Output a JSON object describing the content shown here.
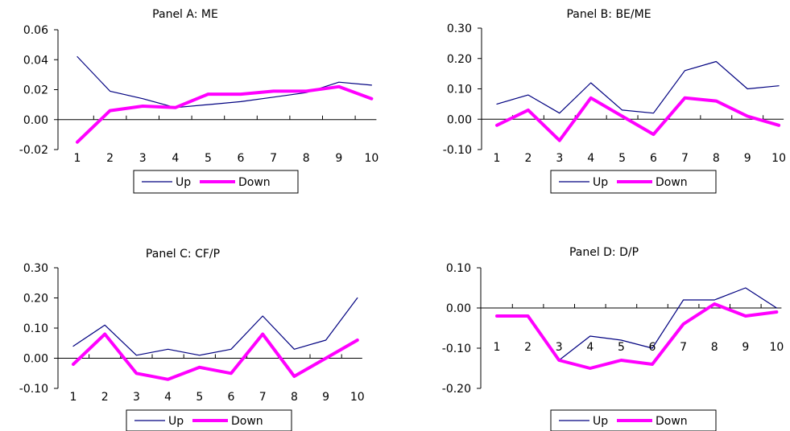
{
  "chart_data": [
    {
      "type": "line",
      "title": "Panel A: ME",
      "x": [
        "1",
        "2",
        "3",
        "4",
        "5",
        "6",
        "7",
        "8",
        "9",
        "10"
      ],
      "ylim": [
        -0.02,
        0.06
      ],
      "yticks": [
        "0.06",
        "0.04",
        "0.02",
        "0.00",
        "-0.02"
      ],
      "ytick_values": [
        0.06,
        0.04,
        0.02,
        0.0,
        -0.02
      ],
      "series": [
        {
          "name": "Up",
          "color": "#000080",
          "values": [
            0.042,
            0.019,
            0.014,
            0.008,
            0.01,
            0.012,
            0.015,
            0.018,
            0.025,
            0.023
          ]
        },
        {
          "name": "Down",
          "color": "#ff00ff",
          "values": [
            -0.015,
            0.006,
            0.009,
            0.008,
            0.017,
            0.017,
            0.019,
            0.019,
            0.022,
            0.014
          ]
        }
      ],
      "legend": "bottom"
    },
    {
      "type": "line",
      "title": "Panel B: BE/ME",
      "x": [
        "1",
        "2",
        "3",
        "4",
        "5",
        "6",
        "7",
        "8",
        "9",
        "10"
      ],
      "ylim": [
        -0.1,
        0.3
      ],
      "yticks": [
        "0.30",
        "0.20",
        "0.10",
        "0.00",
        "-0.10"
      ],
      "ytick_values": [
        0.3,
        0.2,
        0.1,
        0.0,
        -0.1
      ],
      "series": [
        {
          "name": "Up",
          "color": "#000080",
          "values": [
            0.05,
            0.08,
            0.02,
            0.12,
            0.03,
            0.02,
            0.16,
            0.19,
            0.1,
            0.11
          ]
        },
        {
          "name": "Down",
          "color": "#ff00ff",
          "values": [
            -0.02,
            0.03,
            -0.07,
            0.07,
            0.01,
            -0.05,
            0.07,
            0.06,
            0.01,
            -0.02
          ]
        }
      ],
      "legend": "bottom"
    },
    {
      "type": "line",
      "title": "Panel C: CF/P",
      "x": [
        "1",
        "2",
        "3",
        "4",
        "5",
        "6",
        "7",
        "8",
        "9",
        "10"
      ],
      "ylim": [
        -0.1,
        0.3
      ],
      "yticks": [
        "0.30",
        "0.20",
        "0.10",
        "0.00",
        "-0.10"
      ],
      "ytick_values": [
        0.3,
        0.2,
        0.1,
        0.0,
        -0.1
      ],
      "series": [
        {
          "name": "Up",
          "color": "#000080",
          "values": [
            0.04,
            0.11,
            0.01,
            0.03,
            0.01,
            0.03,
            0.14,
            0.03,
            0.06,
            0.2
          ]
        },
        {
          "name": "Down",
          "color": "#ff00ff",
          "values": [
            -0.02,
            0.08,
            -0.05,
            -0.07,
            -0.03,
            -0.05,
            0.08,
            -0.06,
            0.0,
            0.06
          ]
        }
      ],
      "legend": "bottom"
    },
    {
      "type": "line",
      "title": "Panel D: D/P",
      "x": [
        "1",
        "2",
        "3",
        "4",
        "5",
        "6",
        "7",
        "8",
        "9",
        "10"
      ],
      "ylim": [
        -0.2,
        0.1
      ],
      "yticks": [
        "0.10",
        "0.00",
        "-0.10",
        "-0.20"
      ],
      "ytick_values": [
        0.1,
        0.0,
        -0.1,
        -0.2
      ],
      "series": [
        {
          "name": "Up",
          "color": "#000080",
          "values": [
            -0.02,
            -0.02,
            -0.13,
            -0.07,
            -0.08,
            -0.1,
            0.02,
            0.02,
            0.05,
            0.0
          ]
        },
        {
          "name": "Down",
          "color": "#ff00ff",
          "values": [
            -0.02,
            -0.02,
            -0.13,
            -0.15,
            -0.13,
            -0.14,
            -0.04,
            0.01,
            -0.02,
            -0.01
          ]
        }
      ],
      "legend": "bottom"
    }
  ]
}
